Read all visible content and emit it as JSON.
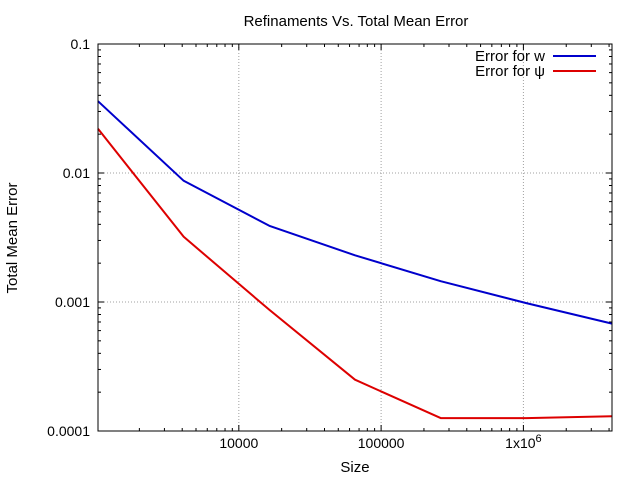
{
  "chart_data": {
    "type": "line",
    "title": "Refinaments Vs. Total Mean Error",
    "xlabel": "Size",
    "ylabel": "Total Mean Error",
    "x_scale": "log",
    "y_scale": "log",
    "xlim": [
      1024,
      4194304
    ],
    "ylim": [
      0.0001,
      0.1
    ],
    "grid": true,
    "legend_position": "top-right",
    "x_ticks": [
      {
        "value": 10000,
        "label": "10000"
      },
      {
        "value": 100000,
        "label": "100000"
      },
      {
        "value": 1000000,
        "label": "1x10",
        "superscript": "6"
      }
    ],
    "y_ticks": [
      {
        "value": 0.1,
        "label": "0.1"
      },
      {
        "value": 0.01,
        "label": "0.01"
      },
      {
        "value": 0.001,
        "label": "0.001"
      },
      {
        "value": 0.0001,
        "label": "0.0001"
      }
    ],
    "series": [
      {
        "name": "Error for w",
        "color": "#0000cc",
        "x": [
          1024,
          4096,
          16384,
          65536,
          262144,
          1048576,
          4194304
        ],
        "y": [
          0.036,
          0.0087,
          0.0039,
          0.0023,
          0.00145,
          0.00098,
          0.00068
        ]
      },
      {
        "name": "Error for ψ",
        "color": "#dd0000",
        "x": [
          1024,
          4096,
          16384,
          65536,
          262144,
          1048576,
          4194304
        ],
        "y": [
          0.022,
          0.0032,
          0.00087,
          0.00025,
          0.000126,
          0.000126,
          0.00013
        ]
      }
    ]
  }
}
